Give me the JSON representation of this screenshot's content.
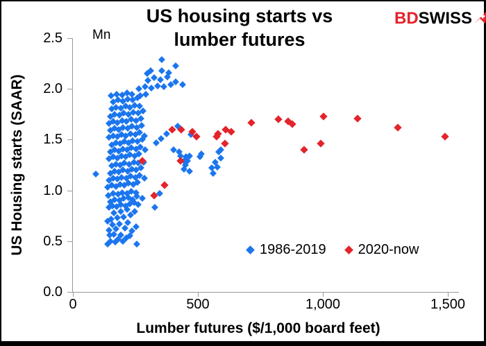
{
  "logo": {
    "text_red": "BD",
    "text_black": "SWISS",
    "arrow_color": "#e3242b"
  },
  "chart_data": {
    "type": "scatter",
    "title": "US housing starts vs lumber futures",
    "y_unit": "Mn",
    "xlabel": "Lumber futures ($/1,000 board feet)",
    "ylabel": "US Housing starts (SAAR)",
    "xlim": [
      0,
      1540
    ],
    "ylim": [
      0,
      2.5
    ],
    "grid": false,
    "legend_position": "inside-bottom-right",
    "x_ticks": [
      {
        "value": 0,
        "label": "0"
      },
      {
        "value": 500,
        "label": "500"
      },
      {
        "value": 1000,
        "label": "1,000"
      },
      {
        "value": 1500,
        "label": "1,500"
      }
    ],
    "y_ticks": [
      {
        "value": 0.0,
        "label": "0.0"
      },
      {
        "value": 0.5,
        "label": "0.5"
      },
      {
        "value": 1.0,
        "label": "1.0"
      },
      {
        "value": 1.5,
        "label": "1.5"
      },
      {
        "value": 2.0,
        "label": "2.0"
      },
      {
        "value": 2.5,
        "label": "2.5"
      }
    ],
    "series": [
      {
        "name": "1986-2019",
        "color": "#1b76ee",
        "marker": "diamond",
        "size": 7,
        "points": [
          [
            139,
            0.47
          ],
          [
            256,
            0.47
          ],
          [
            150,
            0.5
          ],
          [
            169,
            0.49
          ],
          [
            181,
            0.52
          ],
          [
            200,
            0.5
          ],
          [
            214,
            0.53
          ],
          [
            228,
            0.55
          ],
          [
            147,
            0.56
          ],
          [
            164,
            0.57
          ],
          [
            193,
            0.56
          ],
          [
            236,
            0.6
          ],
          [
            145,
            0.61
          ],
          [
            172,
            0.62
          ],
          [
            208,
            0.63
          ],
          [
            253,
            0.64
          ],
          [
            158,
            0.66
          ],
          [
            186,
            0.67
          ],
          [
            219,
            0.68
          ],
          [
            139,
            0.7
          ],
          [
            153,
            0.72
          ],
          [
            178,
            0.73
          ],
          [
            203,
            0.74
          ],
          [
            231,
            0.76
          ],
          [
            164,
            0.78
          ],
          [
            192,
            0.79
          ],
          [
            247,
            0.79
          ],
          [
            217,
            0.81
          ],
          [
            144,
            0.83
          ],
          [
            158,
            0.85
          ],
          [
            175,
            0.84
          ],
          [
            192,
            0.86
          ],
          [
            211,
            0.85
          ],
          [
            228,
            0.87
          ],
          [
            244,
            0.88
          ],
          [
            261,
            0.86
          ],
          [
            328,
            0.83
          ],
          [
            150,
            0.89
          ],
          [
            167,
            0.91
          ],
          [
            186,
            0.9
          ],
          [
            203,
            0.92
          ],
          [
            222,
            0.93
          ],
          [
            239,
            0.91
          ],
          [
            256,
            0.94
          ],
          [
            278,
            0.92
          ],
          [
            142,
            0.95
          ],
          [
            161,
            0.97
          ],
          [
            181,
            0.96
          ],
          [
            197,
            0.98
          ],
          [
            217,
            0.97
          ],
          [
            233,
            0.99
          ],
          [
            253,
            0.98
          ],
          [
            347,
            0.97
          ],
          [
            139,
            1.03
          ],
          [
            156,
            1.05
          ],
          [
            172,
            1.04
          ],
          [
            189,
            1.06
          ],
          [
            206,
            1.05
          ],
          [
            222,
            1.07
          ],
          [
            242,
            1.06
          ],
          [
            258,
            1.08
          ],
          [
            144,
            1.1
          ],
          [
            161,
            1.12
          ],
          [
            178,
            1.11
          ],
          [
            194,
            1.13
          ],
          [
            214,
            1.12
          ],
          [
            231,
            1.14
          ],
          [
            250,
            1.13
          ],
          [
            267,
            1.15
          ],
          [
            286,
            1.12
          ],
          [
            92,
            1.16
          ],
          [
            150,
            1.17
          ],
          [
            167,
            1.19
          ],
          [
            183,
            1.18
          ],
          [
            200,
            1.2
          ],
          [
            219,
            1.19
          ],
          [
            236,
            1.21
          ],
          [
            253,
            1.2
          ],
          [
            272,
            1.22
          ],
          [
            156,
            1.24
          ],
          [
            172,
            1.26
          ],
          [
            189,
            1.25
          ],
          [
            206,
            1.27
          ],
          [
            225,
            1.26
          ],
          [
            244,
            1.28
          ],
          [
            261,
            1.27
          ],
          [
            283,
            1.28
          ],
          [
            403,
            1.4
          ],
          [
            425,
            1.38
          ],
          [
            431,
            1.34
          ],
          [
            444,
            1.29
          ],
          [
            450,
            1.25
          ],
          [
            444,
            1.21
          ],
          [
            453,
            1.33
          ],
          [
            467,
            1.34
          ],
          [
            458,
            1.29
          ],
          [
            467,
            1.19
          ],
          [
            508,
            1.33
          ],
          [
            514,
            1.36
          ],
          [
            556,
            1.22
          ],
          [
            561,
            1.17
          ],
          [
            569,
            1.28
          ],
          [
            578,
            1.23
          ],
          [
            583,
            1.38
          ],
          [
            592,
            1.32
          ],
          [
            592,
            1.4
          ],
          [
            144,
            1.31
          ],
          [
            161,
            1.33
          ],
          [
            178,
            1.32
          ],
          [
            194,
            1.34
          ],
          [
            211,
            1.33
          ],
          [
            228,
            1.35
          ],
          [
            247,
            1.34
          ],
          [
            264,
            1.36
          ],
          [
            150,
            1.38
          ],
          [
            167,
            1.4
          ],
          [
            183,
            1.39
          ],
          [
            200,
            1.41
          ],
          [
            217,
            1.4
          ],
          [
            233,
            1.42
          ],
          [
            253,
            1.41
          ],
          [
            269,
            1.43
          ],
          [
            289,
            1.4
          ],
          [
            156,
            1.45
          ],
          [
            172,
            1.47
          ],
          [
            189,
            1.46
          ],
          [
            206,
            1.48
          ],
          [
            222,
            1.47
          ],
          [
            239,
            1.49
          ],
          [
            258,
            1.48
          ],
          [
            278,
            1.5
          ],
          [
            333,
            1.47
          ],
          [
            144,
            1.52
          ],
          [
            161,
            1.54
          ],
          [
            178,
            1.53
          ],
          [
            194,
            1.55
          ],
          [
            211,
            1.54
          ],
          [
            231,
            1.56
          ],
          [
            250,
            1.55
          ],
          [
            267,
            1.57
          ],
          [
            286,
            1.54
          ],
          [
            353,
            1.51
          ],
          [
            472,
            1.55
          ],
          [
            150,
            1.59
          ],
          [
            167,
            1.61
          ],
          [
            183,
            1.6
          ],
          [
            200,
            1.62
          ],
          [
            219,
            1.61
          ],
          [
            236,
            1.63
          ],
          [
            256,
            1.62
          ],
          [
            275,
            1.64
          ],
          [
            375,
            1.56
          ],
          [
            144,
            1.66
          ],
          [
            161,
            1.68
          ],
          [
            178,
            1.67
          ],
          [
            197,
            1.69
          ],
          [
            214,
            1.68
          ],
          [
            233,
            1.7
          ],
          [
            253,
            1.69
          ],
          [
            272,
            1.71
          ],
          [
            419,
            1.63
          ],
          [
            150,
            1.73
          ],
          [
            167,
            1.75
          ],
          [
            186,
            1.74
          ],
          [
            203,
            1.76
          ],
          [
            222,
            1.75
          ],
          [
            242,
            1.77
          ],
          [
            261,
            1.76
          ],
          [
            281,
            1.78
          ],
          [
            156,
            1.8
          ],
          [
            172,
            1.82
          ],
          [
            192,
            1.81
          ],
          [
            211,
            1.83
          ],
          [
            228,
            1.82
          ],
          [
            247,
            1.84
          ],
          [
            267,
            1.83
          ],
          [
            161,
            1.87
          ],
          [
            181,
            1.89
          ],
          [
            200,
            1.88
          ],
          [
            219,
            1.9
          ],
          [
            239,
            1.89
          ],
          [
            258,
            1.91
          ],
          [
            153,
            1.93
          ],
          [
            175,
            1.95
          ],
          [
            197,
            1.94
          ],
          [
            217,
            1.96
          ],
          [
            236,
            1.95
          ],
          [
            269,
            1.93
          ],
          [
            292,
            1.95
          ],
          [
            264,
            2.0
          ],
          [
            289,
            2.02
          ],
          [
            314,
            2.01
          ],
          [
            339,
            2.03
          ],
          [
            364,
            2.02
          ],
          [
            392,
            2.04
          ],
          [
            439,
            2.04
          ],
          [
            300,
            2.08
          ],
          [
            325,
            2.11
          ],
          [
            350,
            2.09
          ],
          [
            378,
            2.12
          ],
          [
            411,
            2.07
          ],
          [
            297,
            2.15
          ],
          [
            310,
            2.18
          ],
          [
            356,
            2.18
          ],
          [
            383,
            2.16
          ],
          [
            356,
            2.29
          ],
          [
            411,
            2.23
          ]
        ]
      },
      {
        "name": "2020-now",
        "color": "#e3242b",
        "marker": "diamond",
        "size": 8,
        "points": [
          [
            278,
            1.29
          ],
          [
            325,
            0.95
          ],
          [
            367,
            1.05
          ],
          [
            431,
            1.29
          ],
          [
            397,
            1.6
          ],
          [
            433,
            1.6
          ],
          [
            478,
            1.58
          ],
          [
            494,
            1.53
          ],
          [
            575,
            1.53
          ],
          [
            581,
            1.56
          ],
          [
            608,
            1.46
          ],
          [
            611,
            1.6
          ],
          [
            633,
            1.58
          ],
          [
            714,
            1.67
          ],
          [
            822,
            1.7
          ],
          [
            861,
            1.68
          ],
          [
            878,
            1.65
          ],
          [
            925,
            1.4
          ],
          [
            992,
            1.46
          ],
          [
            1003,
            1.73
          ],
          [
            1139,
            1.71
          ],
          [
            1300,
            1.62
          ],
          [
            1489,
            1.53
          ]
        ]
      }
    ]
  }
}
